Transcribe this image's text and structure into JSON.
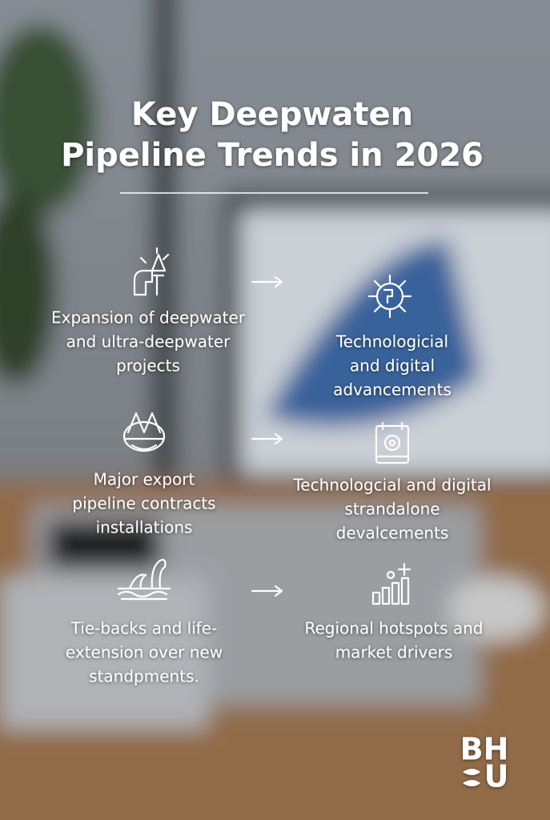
{
  "header": {
    "title": [
      "Key Deepwaten",
      "Pipeline Trends in 2026"
    ]
  },
  "rows": [
    {
      "left": [
        "Expansion of deepwater",
        "and ultra-deepwater",
        "projects"
      ],
      "right": [
        "Technologicial",
        "and digital",
        "advancements"
      ]
    },
    {
      "left": [
        "Major export",
        "pipeline contracts",
        "installations"
      ],
      "right": [
        "Technologcial and digital",
        "strandalone",
        "devalcements"
      ]
    },
    {
      "left": [
        "Tie-backs and life-",
        "extension over new",
        "standpments."
      ],
      "right": [
        "Regional hotspots and",
        "market drivers"
      ]
    }
  ],
  "logo": {
    "top": "BH",
    "bottom": "U"
  }
}
